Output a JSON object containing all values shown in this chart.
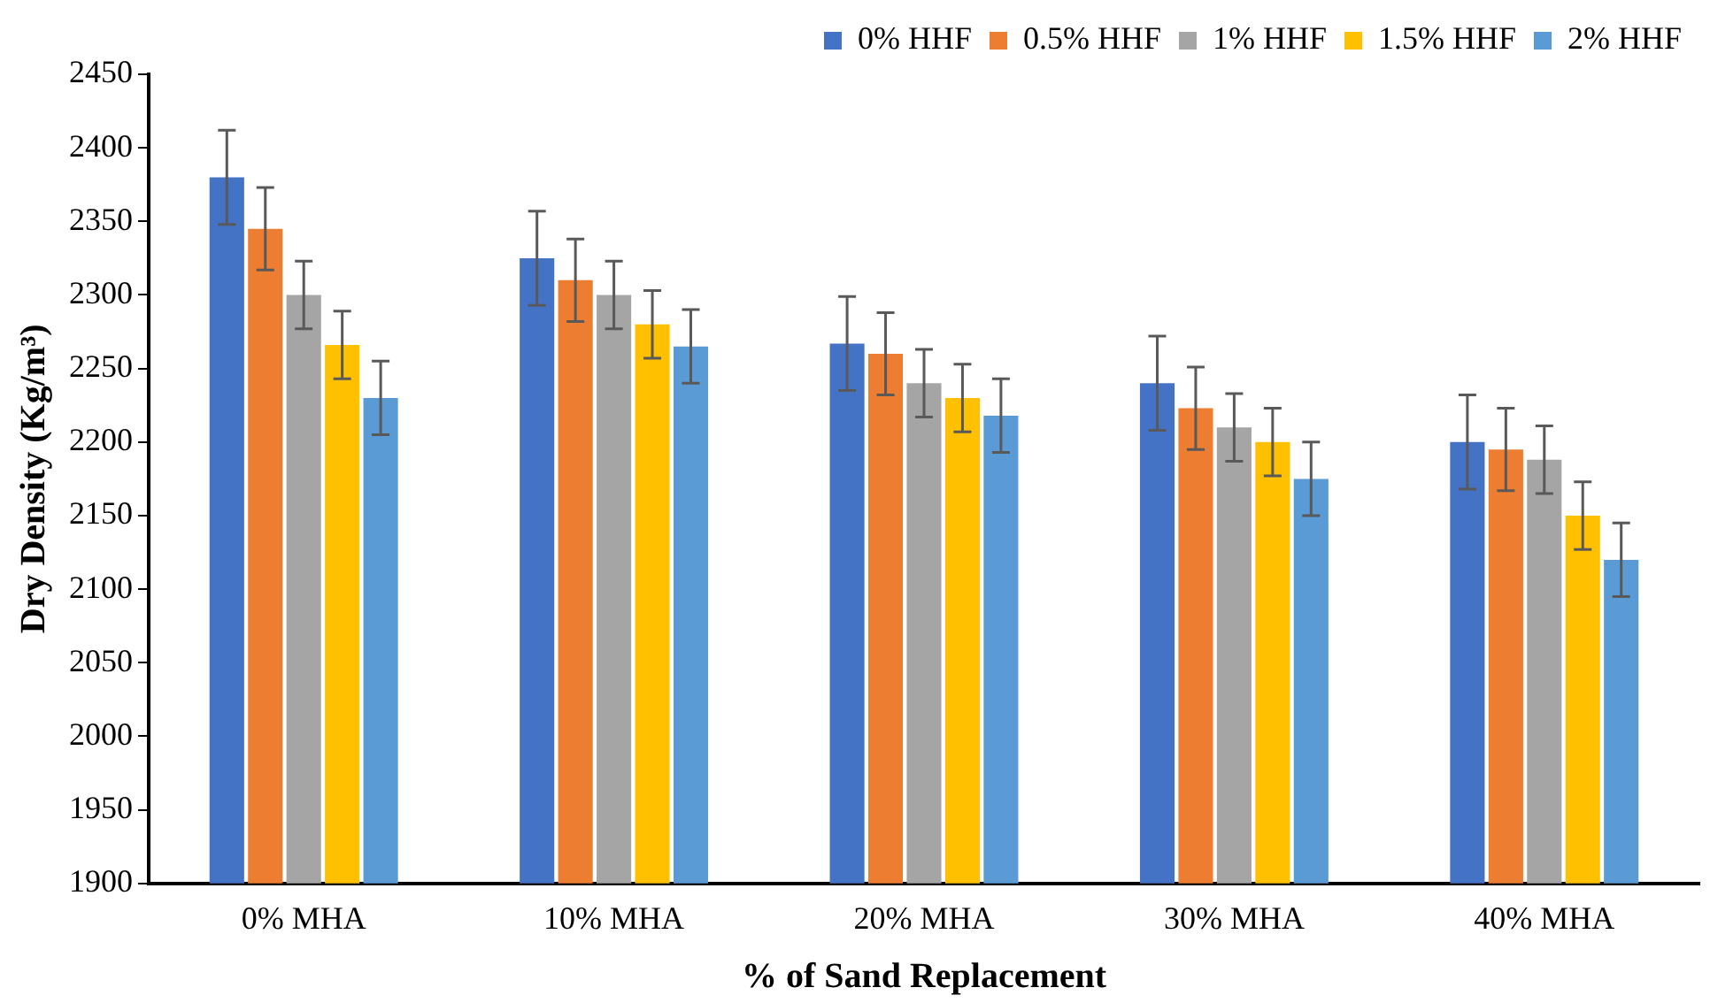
{
  "chart_data": {
    "type": "bar",
    "xlabel": "% of Sand Replacement",
    "ylabel": "Dry Density (Kg/m³)",
    "categories": [
      "0% MHA",
      "10% MHA",
      "20% MHA",
      "30% MHA",
      "40% MHA"
    ],
    "series": [
      {
        "name": "0% HHF",
        "color": "#4472c4",
        "values": [
          2380,
          2325,
          2267,
          2240,
          2200
        ],
        "errors": [
          32,
          32,
          32,
          32,
          32
        ]
      },
      {
        "name": "0.5% HHF",
        "color": "#ed7d31",
        "values": [
          2345,
          2310,
          2260,
          2223,
          2195
        ],
        "errors": [
          28,
          28,
          28,
          28,
          28
        ]
      },
      {
        "name": "1% HHF",
        "color": "#a5a5a5",
        "values": [
          2300,
          2300,
          2240,
          2210,
          2188
        ],
        "errors": [
          23,
          23,
          23,
          23,
          23
        ]
      },
      {
        "name": "1.5% HHF",
        "color": "#ffc000",
        "values": [
          2266,
          2280,
          2230,
          2200,
          2150
        ],
        "errors": [
          23,
          23,
          23,
          23,
          23
        ]
      },
      {
        "name": "2% HHF",
        "color": "#5b9bd5",
        "values": [
          2230,
          2265,
          2218,
          2175,
          2120
        ],
        "errors": [
          25,
          25,
          25,
          25,
          25
        ]
      }
    ],
    "ylim": [
      1900,
      2450
    ],
    "yticks": [
      1900,
      1950,
      2000,
      2050,
      2100,
      2150,
      2200,
      2250,
      2300,
      2350,
      2400,
      2450
    ],
    "grid": false,
    "legend": "top right"
  }
}
